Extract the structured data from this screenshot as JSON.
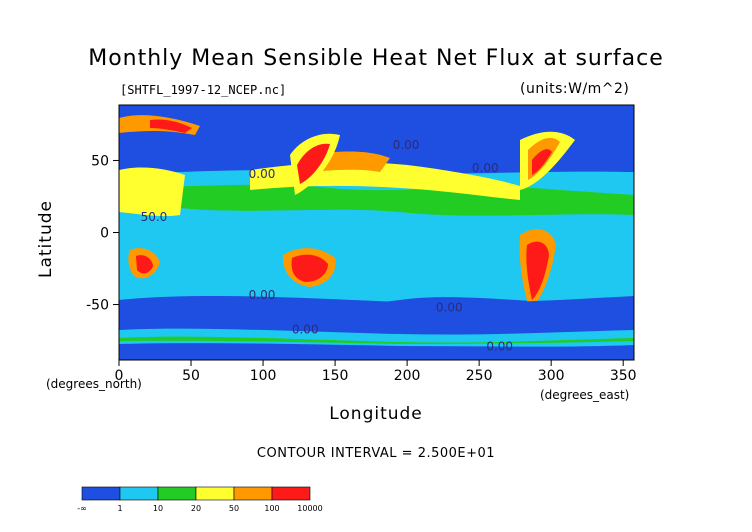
{
  "chart_data": {
    "type": "heatmap",
    "title": "Monthly Mean Sensible Heat Net Flux at surface",
    "subtitle": "[SHTFL_1997-12_NCEP.nc]",
    "units": "(units:W/m^2)",
    "xlabel": "Longitude",
    "xlabel_sub": "(degrees_east)",
    "ylabel": "Latitude",
    "ylabel_sub": "(degrees_north)",
    "xlim": [
      0,
      357.5
    ],
    "ylim": [
      -88.5,
      88.5
    ],
    "xticks": [
      0,
      50,
      100,
      150,
      200,
      250,
      300,
      350
    ],
    "yticks": [
      50,
      0,
      -50
    ],
    "contour_interval": "CONTOUR INTERVAL = 2.500E+01",
    "contour_labels": [
      "50.0",
      "0.00",
      "0.00",
      "0.00",
      "0.00",
      "0.00",
      "0.00",
      "0.00"
    ],
    "colorbar": {
      "levels": [
        "-∞",
        "1",
        "10",
        "20",
        "50",
        "100",
        "10000"
      ],
      "colors": [
        "#1f4fe0",
        "#1fc8f0",
        "#22cc22",
        "#ffff30",
        "#ff9900",
        "#ff1a1a"
      ]
    }
  }
}
